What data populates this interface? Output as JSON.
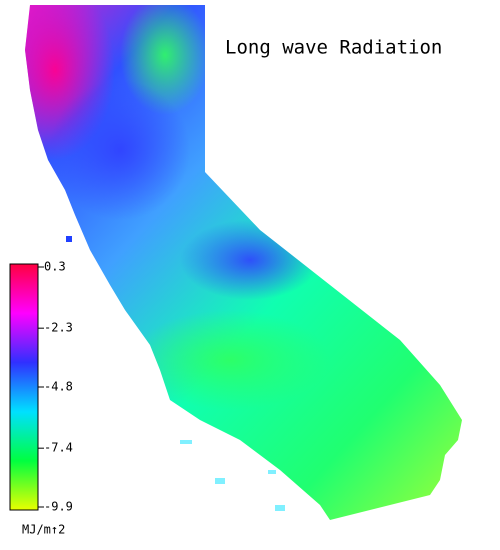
{
  "title": "Long wave Radiation",
  "colorbar": {
    "lim": [
      -9.9,
      0.3
    ],
    "ticks": [
      0.3,
      -2.3,
      -4.8,
      -7.4,
      -9.9
    ],
    "unit": "MJ/m↑2",
    "colors": [
      "#ff0040",
      "#ff00ff",
      "#3030ff",
      "#00e0ff",
      "#00ff40",
      "#e8ff00"
    ]
  }
}
